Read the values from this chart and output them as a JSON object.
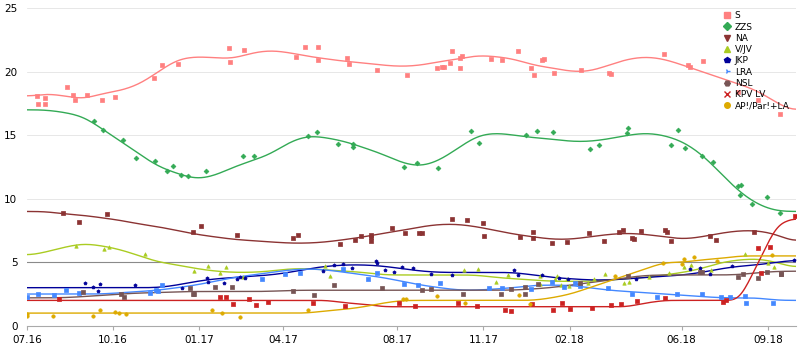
{
  "ylim": [
    0,
    25
  ],
  "yticks": [
    0,
    5,
    10,
    15,
    20,
    25
  ],
  "xtick_labels": [
    "07.16",
    "10.16",
    "01.17",
    "04.17",
    "08.17",
    "11.17",
    "02.18",
    "06.18",
    "09.18"
  ],
  "hline_y": 5,
  "background_color": "#FFFFFF",
  "grid_color": "#DDDDDD",
  "legend": [
    {
      "name": "S",
      "color": "#FF6B6B",
      "marker": "s"
    },
    {
      "name": "ZZS",
      "color": "#33AA55",
      "marker": "D"
    },
    {
      "name": "NA",
      "color": "#8B3333",
      "marker": "v"
    },
    {
      "name": "V/JV",
      "color": "#AACC22",
      "marker": "^"
    },
    {
      "name": "JKP",
      "color": "#000099",
      "marker": "p"
    },
    {
      "name": "LRA",
      "color": "#4488FF",
      "marker": "4"
    },
    {
      "name": "NSL",
      "color": "#884444",
      "marker": "H"
    },
    {
      "name": "KPV LV",
      "color": "#DD3333",
      "marker": "x"
    },
    {
      "name": "AP!/Par!+LA",
      "color": "#DDAA00",
      "marker": "o"
    }
  ],
  "S_curve": [
    18.0,
    18.3,
    18.1,
    17.8,
    18.3,
    18.5,
    19.0,
    20.0,
    21.0,
    21.2,
    21.1,
    21.0,
    21.5,
    21.7,
    21.5,
    21.2,
    21.0,
    20.8,
    20.7,
    20.5,
    20.4,
    20.5,
    20.8,
    21.0,
    21.3,
    21.2,
    21.0,
    20.5,
    20.3,
    20.0,
    20.0,
    20.5,
    21.0,
    21.2,
    21.0,
    20.5,
    20.0,
    19.5,
    19.0,
    18.5,
    17.5,
    16.8
  ],
  "ZZS_curve": [
    17.0,
    17.0,
    16.8,
    16.5,
    15.5,
    14.5,
    13.5,
    12.5,
    12.0,
    11.5,
    11.8,
    12.5,
    13.0,
    13.5,
    14.5,
    15.0,
    14.8,
    14.5,
    14.0,
    13.5,
    12.8,
    12.5,
    13.0,
    14.0,
    15.0,
    15.2,
    15.0,
    14.8,
    14.7,
    14.5,
    14.5,
    14.7,
    15.0,
    15.2,
    15.0,
    14.5,
    13.5,
    12.0,
    10.5,
    9.5,
    9.0,
    9.0
  ],
  "NA_curve": [
    9.0,
    9.0,
    8.8,
    8.7,
    8.5,
    8.3,
    8.0,
    7.8,
    7.5,
    7.2,
    7.0,
    6.8,
    6.7,
    6.6,
    6.5,
    6.5,
    6.6,
    6.8,
    7.0,
    7.3,
    7.5,
    7.8,
    8.0,
    8.0,
    7.8,
    7.5,
    7.2,
    7.0,
    6.8,
    6.8,
    7.0,
    7.2,
    7.3,
    7.2,
    7.0,
    6.8,
    7.0,
    7.3,
    7.5,
    7.5,
    7.2,
    6.5
  ],
  "VJV_curve": [
    5.5,
    5.8,
    6.2,
    6.5,
    6.3,
    6.0,
    5.5,
    5.0,
    4.8,
    4.5,
    4.3,
    4.2,
    4.2,
    4.3,
    4.5,
    4.5,
    4.4,
    4.3,
    4.2,
    4.0,
    4.0,
    4.0,
    4.0,
    4.0,
    4.0,
    3.8,
    3.7,
    3.6,
    3.5,
    3.5,
    3.5,
    3.6,
    3.7,
    3.8,
    4.0,
    4.2,
    4.5,
    5.0,
    5.2,
    5.3,
    5.0,
    4.5
  ],
  "JKP_curve": [
    3.0,
    3.0,
    3.0,
    3.0,
    3.0,
    3.0,
    3.0,
    3.0,
    3.2,
    3.5,
    3.7,
    3.8,
    3.9,
    4.0,
    4.2,
    4.5,
    4.7,
    4.8,
    4.8,
    4.7,
    4.5,
    4.3,
    4.2,
    4.2,
    4.2,
    4.2,
    4.2,
    4.0,
    3.8,
    3.7,
    3.6,
    3.6,
    3.7,
    3.8,
    3.9,
    4.0,
    4.2,
    4.5,
    4.7,
    4.8,
    5.0,
    5.2
  ],
  "LRA_curve": [
    2.5,
    2.5,
    2.5,
    2.5,
    2.5,
    2.6,
    2.7,
    2.8,
    3.0,
    3.2,
    3.5,
    3.8,
    4.0,
    4.2,
    4.4,
    4.5,
    4.4,
    4.2,
    4.0,
    3.8,
    3.5,
    3.2,
    3.0,
    2.8,
    2.8,
    2.9,
    3.0,
    3.2,
    3.2,
    3.2,
    3.0,
    2.8,
    2.7,
    2.6,
    2.5,
    2.4,
    2.3,
    2.2,
    2.2,
    2.2,
    2.0,
    2.0
  ],
  "NSL_curve": [
    2.2,
    2.2,
    2.2,
    2.3,
    2.4,
    2.5,
    2.6,
    2.6,
    2.7,
    2.7,
    2.7,
    2.7,
    2.7,
    2.7,
    2.8,
    2.8,
    2.8,
    2.8,
    2.8,
    2.8,
    2.8,
    2.8,
    2.8,
    2.8,
    2.8,
    2.8,
    2.8,
    2.9,
    3.0,
    3.2,
    3.4,
    3.6,
    3.8,
    4.0,
    4.0,
    4.0,
    4.0,
    4.0,
    4.0,
    4.2,
    4.3,
    4.3
  ],
  "KPVLV_curve": [
    2.0,
    2.0,
    2.0,
    2.0,
    2.0,
    2.0,
    2.0,
    2.0,
    2.0,
    2.0,
    2.0,
    2.0,
    2.0,
    2.0,
    2.0,
    2.0,
    2.0,
    1.8,
    1.7,
    1.5,
    1.5,
    1.5,
    1.5,
    1.5,
    1.5,
    1.5,
    1.5,
    1.5,
    1.5,
    1.5,
    1.5,
    1.5,
    1.5,
    1.8,
    2.0,
    2.0,
    2.0,
    2.0,
    2.0,
    5.0,
    8.0,
    8.5
  ],
  "AP_curve": [
    1.0,
    1.0,
    1.0,
    1.0,
    1.0,
    1.0,
    1.0,
    1.0,
    1.0,
    1.0,
    1.0,
    1.0,
    1.0,
    1.0,
    1.0,
    1.0,
    1.2,
    1.3,
    1.5,
    1.8,
    2.0,
    2.0,
    2.0,
    2.0,
    2.0,
    2.0,
    2.0,
    2.0,
    2.2,
    2.5,
    3.0,
    3.5,
    4.0,
    4.5,
    5.0,
    5.0,
    5.2,
    5.3,
    5.5,
    5.5,
    5.5,
    5.5
  ]
}
